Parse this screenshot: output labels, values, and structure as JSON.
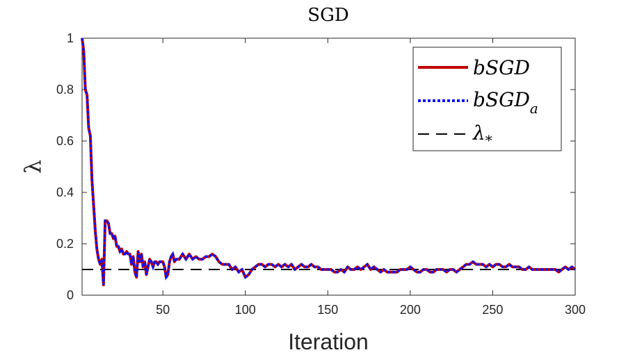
{
  "chart_data": {
    "type": "line",
    "title": "SGD",
    "xlabel": "Iteration",
    "ylabel": "λ",
    "xlim": [
      1,
      300
    ],
    "ylim": [
      0,
      1
    ],
    "xticks": [
      50,
      100,
      150,
      200,
      250,
      300
    ],
    "xtick_labels": [
      "50",
      "100",
      "150",
      "200",
      "250",
      "300"
    ],
    "yticks": [
      0,
      0.2,
      0.4,
      0.6,
      0.8,
      1
    ],
    "ytick_labels": [
      "0",
      "0.2",
      "0.4",
      "0.6",
      "0.8",
      "1"
    ],
    "legend_position": "top-right",
    "series": [
      {
        "name": "bSGD",
        "legend_main": "bSGD",
        "legend_sub": "",
        "color": "#c00000",
        "style": "solid",
        "points": [
          [
            1,
            1.0
          ],
          [
            2,
            0.95
          ],
          [
            3,
            0.8
          ],
          [
            4,
            0.78
          ],
          [
            5,
            0.65
          ],
          [
            6,
            0.62
          ],
          [
            7,
            0.45
          ],
          [
            8,
            0.35
          ],
          [
            9,
            0.25
          ],
          [
            10,
            0.18
          ],
          [
            11,
            0.14
          ],
          [
            12,
            0.12
          ],
          [
            13,
            0.14
          ],
          [
            14,
            0.04
          ],
          [
            15,
            0.29
          ],
          [
            16,
            0.29
          ],
          [
            17,
            0.28
          ],
          [
            18,
            0.24
          ],
          [
            19,
            0.24
          ],
          [
            20,
            0.22
          ],
          [
            21,
            0.23
          ],
          [
            22,
            0.19
          ],
          [
            23,
            0.19
          ],
          [
            24,
            0.17
          ],
          [
            25,
            0.18
          ],
          [
            26,
            0.16
          ],
          [
            27,
            0.16
          ],
          [
            28,
            0.17
          ],
          [
            29,
            0.16
          ],
          [
            30,
            0.16
          ],
          [
            31,
            0.12
          ],
          [
            32,
            0.15
          ],
          [
            33,
            0.09
          ],
          [
            34,
            0.07
          ],
          [
            35,
            0.17
          ],
          [
            36,
            0.13
          ],
          [
            37,
            0.16
          ],
          [
            38,
            0.11
          ],
          [
            39,
            0.13
          ],
          [
            40,
            0.08
          ],
          [
            41,
            0.11
          ],
          [
            42,
            0.14
          ],
          [
            43,
            0.13
          ],
          [
            44,
            0.11
          ],
          [
            45,
            0.13
          ],
          [
            46,
            0.13
          ],
          [
            47,
            0.12
          ],
          [
            48,
            0.13
          ],
          [
            49,
            0.13
          ],
          [
            50,
            0.13
          ],
          [
            51,
            0.11
          ],
          [
            52,
            0.07
          ],
          [
            53,
            0.08
          ],
          [
            54,
            0.13
          ],
          [
            55,
            0.15
          ],
          [
            56,
            0.16
          ],
          [
            57,
            0.13
          ],
          [
            58,
            0.14
          ],
          [
            59,
            0.14
          ],
          [
            60,
            0.14
          ],
          [
            62,
            0.16
          ],
          [
            64,
            0.14
          ],
          [
            66,
            0.16
          ],
          [
            68,
            0.14
          ],
          [
            70,
            0.15
          ],
          [
            72,
            0.14
          ],
          [
            74,
            0.14
          ],
          [
            76,
            0.15
          ],
          [
            78,
            0.15
          ],
          [
            80,
            0.16
          ],
          [
            82,
            0.15
          ],
          [
            84,
            0.13
          ],
          [
            86,
            0.12
          ],
          [
            88,
            0.12
          ],
          [
            90,
            0.12
          ],
          [
            92,
            0.1
          ],
          [
            94,
            0.11
          ],
          [
            96,
            0.09
          ],
          [
            98,
            0.1
          ],
          [
            100,
            0.07
          ],
          [
            102,
            0.08
          ],
          [
            104,
            0.1
          ],
          [
            106,
            0.11
          ],
          [
            108,
            0.12
          ],
          [
            110,
            0.12
          ],
          [
            112,
            0.11
          ],
          [
            114,
            0.12
          ],
          [
            116,
            0.12
          ],
          [
            118,
            0.11
          ],
          [
            120,
            0.12
          ],
          [
            122,
            0.11
          ],
          [
            124,
            0.12
          ],
          [
            126,
            0.11
          ],
          [
            128,
            0.12
          ],
          [
            130,
            0.1
          ],
          [
            132,
            0.11
          ],
          [
            134,
            0.12
          ],
          [
            136,
            0.11
          ],
          [
            138,
            0.11
          ],
          [
            140,
            0.12
          ],
          [
            142,
            0.11
          ],
          [
            144,
            0.11
          ],
          [
            146,
            0.1
          ],
          [
            148,
            0.1
          ],
          [
            150,
            0.1
          ],
          [
            152,
            0.1
          ],
          [
            154,
            0.09
          ],
          [
            156,
            0.09
          ],
          [
            158,
            0.1
          ],
          [
            160,
            0.09
          ],
          [
            162,
            0.11
          ],
          [
            164,
            0.1
          ],
          [
            166,
            0.1
          ],
          [
            168,
            0.11
          ],
          [
            170,
            0.1
          ],
          [
            172,
            0.11
          ],
          [
            174,
            0.12
          ],
          [
            176,
            0.1
          ],
          [
            178,
            0.11
          ],
          [
            180,
            0.1
          ],
          [
            182,
            0.09
          ],
          [
            184,
            0.1
          ],
          [
            186,
            0.09
          ],
          [
            188,
            0.09
          ],
          [
            190,
            0.09
          ],
          [
            192,
            0.09
          ],
          [
            194,
            0.1
          ],
          [
            196,
            0.1
          ],
          [
            198,
            0.1
          ],
          [
            200,
            0.11
          ],
          [
            202,
            0.1
          ],
          [
            204,
            0.09
          ],
          [
            206,
            0.09
          ],
          [
            208,
            0.1
          ],
          [
            210,
            0.1
          ],
          [
            212,
            0.09
          ],
          [
            214,
            0.09
          ],
          [
            216,
            0.1
          ],
          [
            218,
            0.1
          ],
          [
            220,
            0.1
          ],
          [
            222,
            0.09
          ],
          [
            224,
            0.1
          ],
          [
            226,
            0.1
          ],
          [
            228,
            0.09
          ],
          [
            230,
            0.1
          ],
          [
            232,
            0.11
          ],
          [
            234,
            0.12
          ],
          [
            236,
            0.12
          ],
          [
            238,
            0.13
          ],
          [
            240,
            0.12
          ],
          [
            242,
            0.12
          ],
          [
            244,
            0.12
          ],
          [
            246,
            0.11
          ],
          [
            248,
            0.12
          ],
          [
            250,
            0.11
          ],
          [
            252,
            0.12
          ],
          [
            254,
            0.12
          ],
          [
            256,
            0.11
          ],
          [
            258,
            0.11
          ],
          [
            260,
            0.12
          ],
          [
            262,
            0.11
          ],
          [
            264,
            0.11
          ],
          [
            266,
            0.11
          ],
          [
            268,
            0.1
          ],
          [
            270,
            0.1
          ],
          [
            272,
            0.11
          ],
          [
            274,
            0.1
          ],
          [
            276,
            0.1
          ],
          [
            278,
            0.1
          ],
          [
            280,
            0.1
          ],
          [
            282,
            0.1
          ],
          [
            284,
            0.1
          ],
          [
            286,
            0.1
          ],
          [
            288,
            0.1
          ],
          [
            290,
            0.09
          ],
          [
            292,
            0.1
          ],
          [
            294,
            0.11
          ],
          [
            296,
            0.1
          ],
          [
            298,
            0.11
          ],
          [
            300,
            0.1
          ]
        ]
      },
      {
        "name": "bSGD_a",
        "legend_main": "bSGD",
        "legend_sub": "a",
        "color": "#1010f0",
        "style": "dotted",
        "points": "same-as-bSGD"
      },
      {
        "name": "λ*",
        "legend_main": "λ",
        "legend_sub": "*",
        "color": "#000000",
        "style": "dashed",
        "constant": 0.1
      }
    ]
  }
}
